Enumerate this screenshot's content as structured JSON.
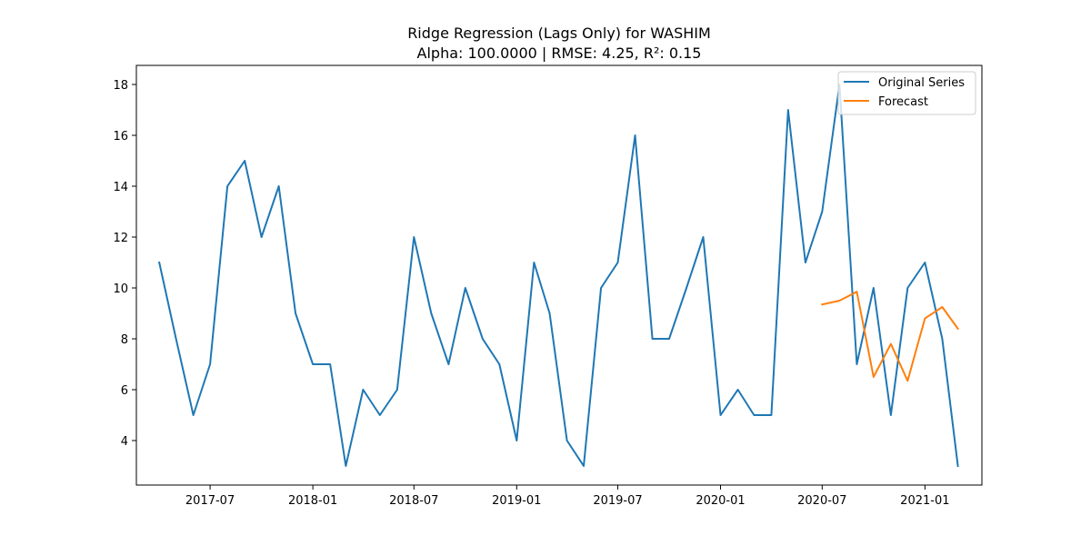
{
  "chart_data": {
    "type": "line",
    "title": "Ridge Regression (Lags Only) for WASHIM",
    "subtitle": "Alpha: 100.0000 | RMSE: 4.25, R²: 0.15",
    "xlabel": "",
    "ylabel": "",
    "x_ticks": [
      "2017-07",
      "2018-01",
      "2018-07",
      "2019-01",
      "2019-07",
      "2020-01",
      "2020-07",
      "2021-01"
    ],
    "y_ticks": [
      4,
      6,
      8,
      10,
      12,
      14,
      16,
      18
    ],
    "xlim": [
      "2017-02-19",
      "2021-04-13"
    ],
    "ylim": [
      2.25,
      18.75
    ],
    "grid": false,
    "legend_position": "top-right",
    "series": [
      {
        "name": "Original Series",
        "color": "#1f77b4",
        "x": [
          "2017-04-01",
          "2017-05-01",
          "2017-06-01",
          "2017-07-01",
          "2017-08-01",
          "2017-09-01",
          "2017-10-01",
          "2017-11-01",
          "2017-12-01",
          "2018-01-01",
          "2018-02-01",
          "2018-03-01",
          "2018-04-01",
          "2018-05-01",
          "2018-06-01",
          "2018-07-01",
          "2018-08-01",
          "2018-09-01",
          "2018-10-01",
          "2018-11-01",
          "2018-12-01",
          "2019-01-01",
          "2019-02-01",
          "2019-03-01",
          "2019-04-01",
          "2019-05-01",
          "2019-06-01",
          "2019-07-01",
          "2019-08-01",
          "2019-09-01",
          "2019-10-01",
          "2019-11-01",
          "2019-12-01",
          "2020-01-01",
          "2020-02-01",
          "2020-03-01",
          "2020-04-01",
          "2020-05-01",
          "2020-06-01",
          "2020-07-01",
          "2020-08-01",
          "2020-09-01",
          "2020-10-01",
          "2020-11-01",
          "2020-12-01",
          "2021-01-01",
          "2021-02-01",
          "2021-03-01"
        ],
        "values": [
          11,
          8,
          5,
          7,
          14,
          15,
          12,
          14,
          9,
          7,
          7,
          3,
          6,
          5,
          6,
          12,
          9,
          7,
          10,
          8,
          7,
          4,
          11,
          9,
          4,
          3,
          10,
          11,
          16,
          8,
          8,
          10,
          12,
          5,
          6,
          5,
          5,
          17,
          11,
          13,
          18,
          7,
          10,
          5,
          10,
          11,
          8,
          3
        ]
      },
      {
        "name": "Forecast",
        "color": "#ff7f0e",
        "x": [
          "2020-07-01",
          "2020-08-01",
          "2020-09-01",
          "2020-10-01",
          "2020-11-01",
          "2020-12-01",
          "2021-01-01",
          "2021-02-01",
          "2021-03-01"
        ],
        "values": [
          9.35,
          9.5,
          9.85,
          6.5,
          7.8,
          6.35,
          8.8,
          9.25,
          8.4
        ]
      }
    ]
  }
}
